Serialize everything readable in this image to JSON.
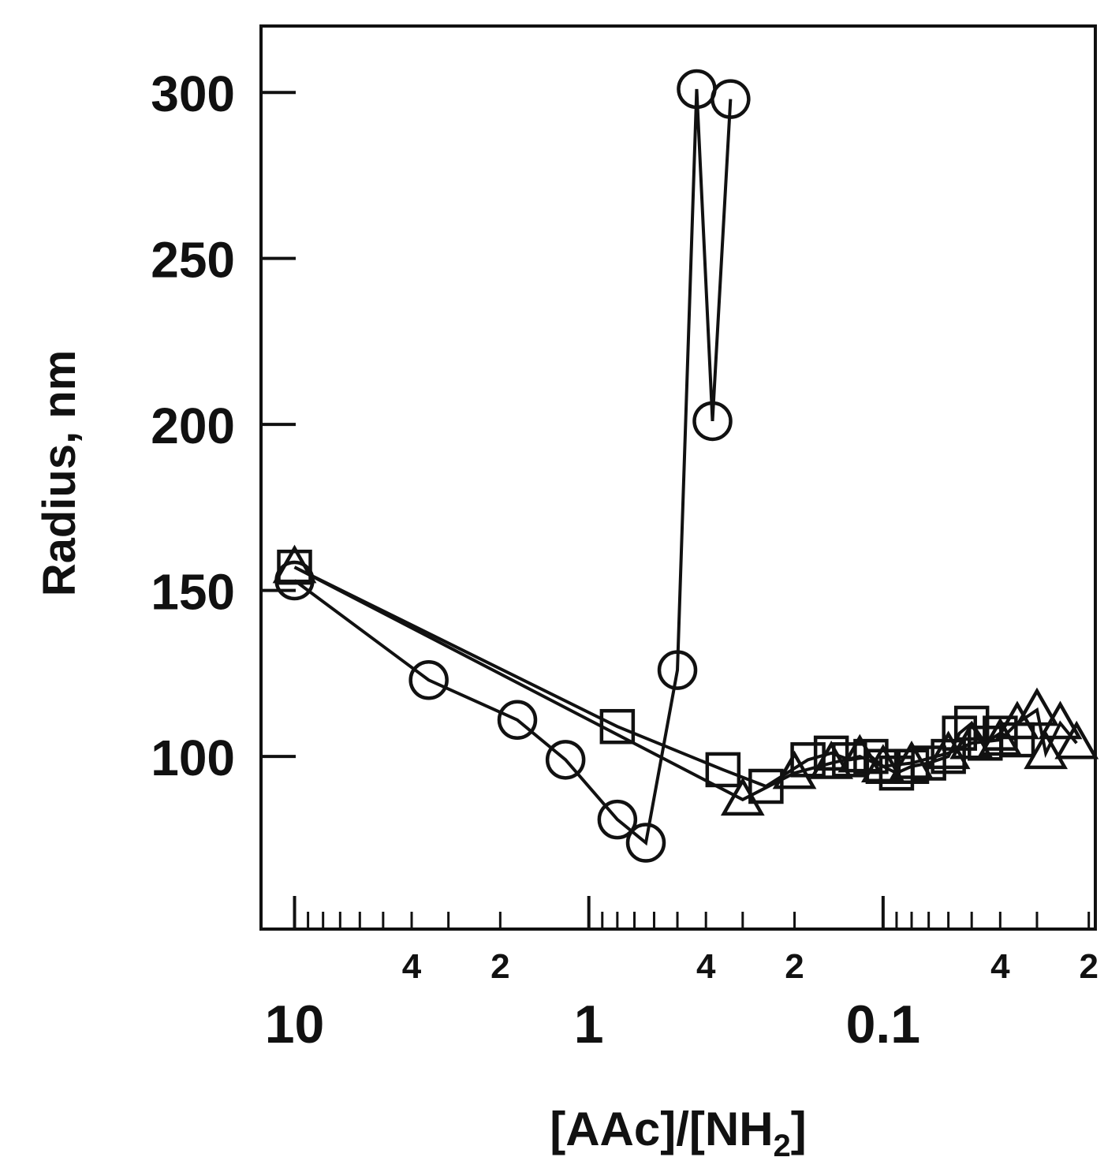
{
  "chart_data": {
    "type": "scatter",
    "xlabel": "[AAc]/[NH",
    "xlabel_sub": "2",
    "xlabel_end": "]",
    "ylabel": "Radius, nm",
    "x_scale": "log",
    "x_reversed": true,
    "xlim": [
      13.0,
      0.019
    ],
    "ylim": [
      48,
      320
    ],
    "x_major_ticks": [
      {
        "value": 10,
        "label": "10"
      },
      {
        "value": 1,
        "label": "1"
      },
      {
        "value": 0.1,
        "label": "0.1"
      }
    ],
    "x_minor_labels": [
      {
        "value": 4,
        "label": "4"
      },
      {
        "value": 2,
        "label": "2"
      },
      {
        "value": 0.4,
        "label": "4"
      },
      {
        "value": 0.2,
        "label": "2"
      },
      {
        "value": 0.04,
        "label": "4"
      },
      {
        "value": 0.02,
        "label": "2"
      }
    ],
    "y_ticks": [
      {
        "value": 100,
        "label": "100"
      },
      {
        "value": 150,
        "label": "150"
      },
      {
        "value": 200,
        "label": "200"
      },
      {
        "value": 250,
        "label": "250"
      },
      {
        "value": 300,
        "label": "300"
      }
    ],
    "grid": false,
    "series": [
      {
        "marker": "circle",
        "points": [
          {
            "x": 10,
            "y": 153
          },
          {
            "x": 3.5,
            "y": 123
          },
          {
            "x": 1.75,
            "y": 111
          },
          {
            "x": 1.2,
            "y": 99
          },
          {
            "x": 0.8,
            "y": 81
          },
          {
            "x": 0.64,
            "y": 74
          },
          {
            "x": 0.5,
            "y": 126
          },
          {
            "x": 0.43,
            "y": 301
          },
          {
            "x": 0.38,
            "y": 201
          },
          {
            "x": 0.33,
            "y": 298
          }
        ]
      },
      {
        "marker": "square",
        "points": [
          {
            "x": 10,
            "y": 157
          },
          {
            "x": 0.8,
            "y": 109
          },
          {
            "x": 0.35,
            "y": 96
          },
          {
            "x": 0.25,
            "y": 91
          },
          {
            "x": 0.18,
            "y": 99
          },
          {
            "x": 0.15,
            "y": 101
          },
          {
            "x": 0.13,
            "y": 99
          },
          {
            "x": 0.11,
            "y": 100
          },
          {
            "x": 0.1,
            "y": 97
          },
          {
            "x": 0.09,
            "y": 95
          },
          {
            "x": 0.08,
            "y": 97
          },
          {
            "x": 0.07,
            "y": 98
          },
          {
            "x": 0.06,
            "y": 100
          },
          {
            "x": 0.055,
            "y": 107
          },
          {
            "x": 0.05,
            "y": 110
          },
          {
            "x": 0.045,
            "y": 104
          },
          {
            "x": 0.04,
            "y": 107
          },
          {
            "x": 0.035,
            "y": 105
          }
        ]
      },
      {
        "marker": "triangle",
        "points": [
          {
            "x": 10,
            "y": 157
          },
          {
            "x": 0.3,
            "y": 87
          },
          {
            "x": 0.2,
            "y": 95
          },
          {
            "x": 0.15,
            "y": 98
          },
          {
            "x": 0.12,
            "y": 100
          },
          {
            "x": 0.1,
            "y": 97
          },
          {
            "x": 0.08,
            "y": 98
          },
          {
            "x": 0.06,
            "y": 101
          },
          {
            "x": 0.05,
            "y": 104
          },
          {
            "x": 0.04,
            "y": 105
          },
          {
            "x": 0.035,
            "y": 110
          },
          {
            "x": 0.03,
            "y": 114
          },
          {
            "x": 0.028,
            "y": 101
          },
          {
            "x": 0.025,
            "y": 110
          },
          {
            "x": 0.022,
            "y": 104
          }
        ]
      }
    ]
  }
}
